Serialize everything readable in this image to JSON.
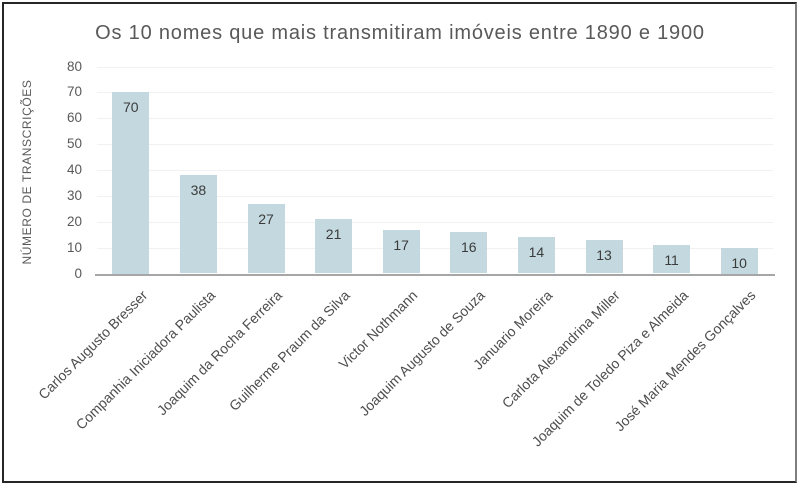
{
  "chart_data": {
    "type": "bar",
    "title": "Os 10 nomes que mais transmitiram imóveis entre 1890 e 1900",
    "ylabel": "NÚMERO DE TRANSCRIÇÕES",
    "xlabel": "",
    "categories": [
      "Carlos Augusto Bresser",
      "Companhia Iniciadora Paulista",
      "Joaquim da Rocha Ferreira",
      "Guilherme Praum da Silva",
      "Victor Nothmann",
      "Joaquim Augusto de Souza",
      "Januario Moreira",
      "Carlota Alexandrina Miller",
      "Joaquim de Toledo Piza e Almeida",
      "José Maria Mendes Gonçalves"
    ],
    "values": [
      70,
      38,
      27,
      21,
      17,
      16,
      14,
      13,
      11,
      10
    ],
    "yticks": [
      0,
      10,
      20,
      30,
      40,
      50,
      60,
      70,
      80
    ],
    "ylim": [
      0,
      80
    ],
    "grid": true,
    "legend": "none",
    "data_labels": "inside-end",
    "category_label_rotation_deg": 45,
    "colors": {
      "bar_fill": "#c3d9df",
      "title_text": "#595959",
      "tick_text": "#595959",
      "data_label_text": "#3b3b3b",
      "category_text": "#4d4d4d",
      "gridline": "#f1f1f1",
      "axis_line": "#a6a6a6",
      "frame_border": "#262626"
    }
  }
}
